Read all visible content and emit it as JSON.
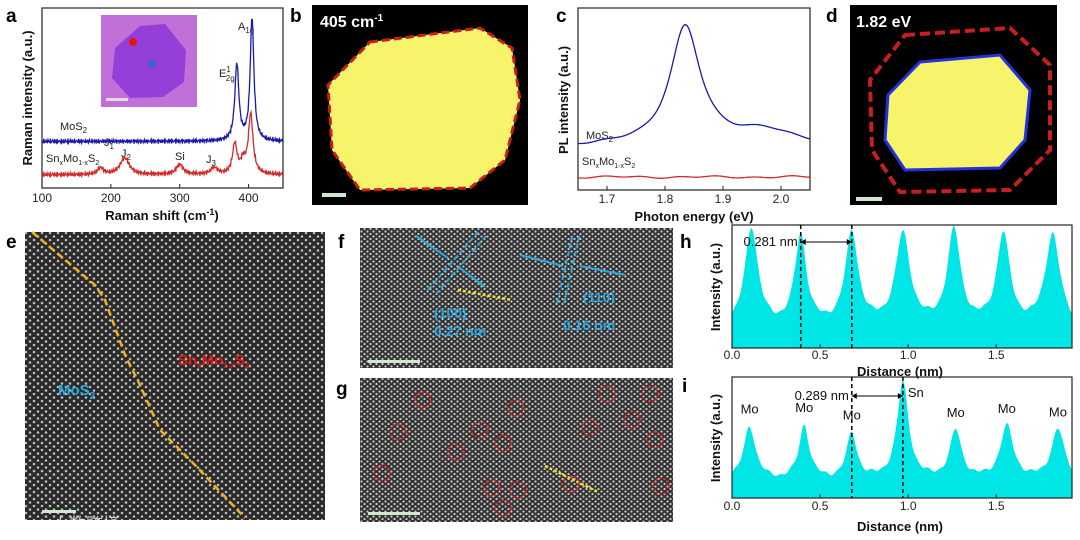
{
  "panels": {
    "a": "a",
    "b": "b",
    "c": "c",
    "d": "d",
    "e": "e",
    "f": "f",
    "g": "g",
    "h": "h",
    "i": "i"
  },
  "colors": {
    "mos2": "#1a1aa8",
    "snmos2": "#d42a2a",
    "profile": "#00e5e5",
    "yellow": "#f7f36a",
    "dash_red": "#c81e1e",
    "dash_blue": "#2233dd",
    "cyan_text": "#29a9e0",
    "boundary": "#f0b020"
  },
  "labels": {
    "mos2": {
      "main": "MoS",
      "sub": "2"
    },
    "snmos2": {
      "sn": "Sn",
      "x": "x",
      "mo": "Mo",
      "sub": "1-x",
      "s": "S",
      "two": "2"
    },
    "b_title": {
      "main": "405 cm",
      "sup": "-1"
    },
    "d_title": "1.82 eV",
    "f_100": "(100)",
    "f_027": "0.27 nm",
    "f_110": "(110)",
    "f_016": "0.16 nm",
    "watermark": "大数跨境"
  },
  "chart_data": [
    {
      "id": "a",
      "type": "line",
      "title": "",
      "xlabel": {
        "main": "Raman shift (cm",
        "sup": "-1",
        "end": ")"
      },
      "ylabel": "Raman intensity (a.u.)",
      "xlim": [
        100,
        450
      ],
      "ylim": [
        -0.4,
        5.0
      ],
      "xticks": [
        "100",
        "200",
        "300",
        "400"
      ],
      "series": [
        {
          "name": "MoS2",
          "baseline": 1.0,
          "peaks": [
            [
              383,
              2.3,
              3.5
            ],
            [
              405,
              3.7,
              3.2
            ]
          ]
        },
        {
          "name": "SnxMo1-xS2",
          "baseline": 0.0,
          "peaks": [
            [
              185,
              0.2,
              5
            ],
            [
              220,
              0.5,
              8
            ],
            [
              300,
              0.3,
              6
            ],
            [
              350,
              0.2,
              6
            ],
            [
              380,
              0.9,
              4
            ],
            [
              392,
              0.35,
              4
            ],
            [
              403,
              1.8,
              4
            ]
          ]
        }
      ],
      "annotations": {
        "a1g": {
          "main": "A",
          "sub": "1g"
        },
        "e2g": {
          "main": "E",
          "sup": "1",
          "sub": "2g"
        },
        "j1": {
          "main": "J",
          "sub": "1"
        },
        "j2": {
          "main": "J",
          "sub": "2"
        },
        "si": "Si",
        "j3": {
          "main": "J",
          "sub": "3"
        }
      }
    },
    {
      "id": "c",
      "type": "line",
      "xlabel": "Photon energy (eV)",
      "ylabel": "PL intensity (a.u.)",
      "xlim": [
        1.65,
        2.05
      ],
      "ylim": [
        0,
        4.2
      ],
      "xticks": [
        "1.7",
        "1.8",
        "1.9",
        "2.0"
      ],
      "series": [
        {
          "name": "MoS2",
          "baseline": 1.0,
          "peaks": [
            [
              1.835,
              2.75,
              0.032
            ],
            [
              1.97,
              0.35,
              0.06
            ]
          ]
        },
        {
          "name": "SnxMo1-xS2",
          "baseline": 0.3,
          "peaks": []
        }
      ]
    },
    {
      "id": "h",
      "type": "area",
      "xlabel": "Distance (nm)",
      "ylabel": "Intensity (a.u.)",
      "xlim": [
        0,
        1.93
      ],
      "ylim": [
        0,
        1
      ],
      "xticks": [
        "0.0",
        "0.5",
        "1.0",
        "1.5"
      ],
      "series": [
        {
          "name": "MoS2 profile",
          "baseline": 0.15,
          "peaks": [
            [
              0.11,
              0.82,
              0.045
            ],
            [
              0.39,
              0.74,
              0.04
            ],
            [
              0.68,
              0.76,
              0.045
            ],
            [
              0.97,
              0.75,
              0.05
            ],
            [
              1.26,
              0.78,
              0.045
            ],
            [
              1.54,
              0.75,
              0.045
            ],
            [
              1.82,
              0.76,
              0.05
            ]
          ]
        }
      ],
      "spacing": "0.281 nm",
      "markers": [
        0.39,
        0.68
      ]
    },
    {
      "id": "i",
      "type": "area",
      "xlabel": "Distance (nm)",
      "ylabel": "Intensity (a.u.)",
      "xlim": [
        0,
        1.93
      ],
      "ylim": [
        0,
        1
      ],
      "xticks": [
        "0.0",
        "0.5",
        "1.0",
        "1.5"
      ],
      "series": [
        {
          "name": "SnxMo1-xS2 profile",
          "baseline": 0.14,
          "peaks": [
            [
              0.1,
              0.45,
              0.04
            ],
            [
              0.41,
              0.45,
              0.035
            ],
            [
              0.68,
              0.38,
              0.035
            ],
            [
              0.97,
              0.8,
              0.04
            ],
            [
              1.27,
              0.4,
              0.04
            ],
            [
              1.56,
              0.44,
              0.045
            ],
            [
              1.85,
              0.42,
              0.045
            ]
          ]
        }
      ],
      "spacing": "0.289 nm",
      "markers": [
        0.68,
        0.97
      ],
      "atoms": [
        "Mo",
        "Mo",
        "Mo",
        "Sn",
        "Mo",
        "Mo",
        "Mo"
      ]
    }
  ]
}
